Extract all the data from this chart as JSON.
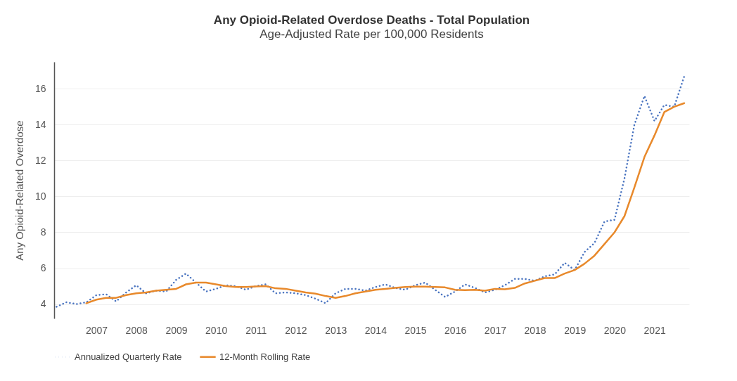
{
  "chart_data": {
    "type": "line",
    "title": "Any Opioid-Related Overdose Deaths - Total Population",
    "subtitle": "Age-Adjusted Rate per 100,000 Residents",
    "ylabel": "Any Opioid-Related Overdose",
    "x": [
      "2006-01",
      "2006-04",
      "2006-07",
      "2006-10",
      "2007-01",
      "2007-04",
      "2007-07",
      "2007-10",
      "2008-01",
      "2008-04",
      "2008-07",
      "2008-10",
      "2009-01",
      "2009-04",
      "2009-07",
      "2009-10",
      "2010-01",
      "2010-04",
      "2010-07",
      "2010-10",
      "2011-01",
      "2011-04",
      "2011-07",
      "2011-10",
      "2012-01",
      "2012-04",
      "2012-07",
      "2012-10",
      "2013-01",
      "2013-04",
      "2013-07",
      "2013-10",
      "2014-01",
      "2014-04",
      "2014-07",
      "2014-10",
      "2015-01",
      "2015-04",
      "2015-07",
      "2015-10",
      "2016-01",
      "2016-04",
      "2016-07",
      "2016-10",
      "2017-01",
      "2017-04",
      "2017-07",
      "2017-10",
      "2018-01",
      "2018-04",
      "2018-07",
      "2018-10",
      "2019-01",
      "2019-04",
      "2019-07",
      "2019-10",
      "2020-01",
      "2020-04",
      "2020-07",
      "2020-10",
      "2021-01",
      "2021-04",
      "2021-07",
      "2021-10"
    ],
    "series": [
      {
        "name": "Annualized Quarterly Rate",
        "color": "#4a74c0",
        "line_style": "dotted",
        "values": [
          3.85,
          4.1,
          4.0,
          4.1,
          4.5,
          4.55,
          4.15,
          4.65,
          5.05,
          4.6,
          4.75,
          4.7,
          5.35,
          5.7,
          5.2,
          4.7,
          4.85,
          5.05,
          5.0,
          4.8,
          5.0,
          5.1,
          4.6,
          4.65,
          4.6,
          4.5,
          4.3,
          4.05,
          4.6,
          4.85,
          4.85,
          4.75,
          4.95,
          5.1,
          4.9,
          4.8,
          5.05,
          5.2,
          4.8,
          4.4,
          4.7,
          5.1,
          4.9,
          4.65,
          4.8,
          5.05,
          5.4,
          5.4,
          5.3,
          5.55,
          5.65,
          6.3,
          5.9,
          6.9,
          7.4,
          8.6,
          8.7,
          11.0,
          14.0,
          15.6,
          14.2,
          15.1,
          15.0,
          16.7
        ]
      },
      {
        "name": "12-Month Rolling Rate",
        "color": "#e8892b",
        "line_style": "solid",
        "values": [
          null,
          null,
          null,
          4.05,
          4.25,
          4.35,
          4.35,
          4.5,
          4.6,
          4.65,
          4.75,
          4.8,
          4.85,
          5.1,
          5.2,
          5.2,
          5.1,
          5.0,
          4.95,
          4.95,
          4.98,
          5.0,
          4.88,
          4.85,
          4.75,
          4.65,
          4.58,
          4.45,
          4.35,
          4.45,
          4.6,
          4.7,
          4.8,
          4.85,
          4.9,
          4.95,
          4.97,
          4.97,
          4.95,
          4.93,
          4.8,
          4.78,
          4.8,
          4.75,
          4.85,
          4.83,
          4.9,
          5.15,
          5.3,
          5.45,
          5.45,
          5.7,
          5.9,
          6.25,
          6.7,
          7.35,
          8.0,
          8.9,
          10.5,
          12.2,
          13.4,
          14.7,
          15.0,
          15.2
        ]
      }
    ],
    "xlim": [
      "2005-12-10",
      "2021-11-15"
    ],
    "xticks": [
      {
        "value": "2007-01-01",
        "label": "2007"
      },
      {
        "value": "2008-01-01",
        "label": "2008"
      },
      {
        "value": "2009-01-01",
        "label": "2009"
      },
      {
        "value": "2010-01-01",
        "label": "2010"
      },
      {
        "value": "2011-01-01",
        "label": "2011"
      },
      {
        "value": "2012-01-01",
        "label": "2012"
      },
      {
        "value": "2013-01-01",
        "label": "2013"
      },
      {
        "value": "2014-01-01",
        "label": "2014"
      },
      {
        "value": "2015-01-01",
        "label": "2015"
      },
      {
        "value": "2016-01-01",
        "label": "2016"
      },
      {
        "value": "2017-01-01",
        "label": "2017"
      },
      {
        "value": "2018-01-01",
        "label": "2018"
      },
      {
        "value": "2019-01-01",
        "label": "2019"
      },
      {
        "value": "2020-01-01",
        "label": "2020"
      },
      {
        "value": "2021-01-01",
        "label": "2021"
      }
    ],
    "ylim": [
      3.2,
      17.5
    ],
    "yticks": [
      4,
      6,
      8,
      10,
      12,
      14,
      16
    ],
    "grid": "y",
    "legend": "bottom",
    "marker": "none"
  }
}
